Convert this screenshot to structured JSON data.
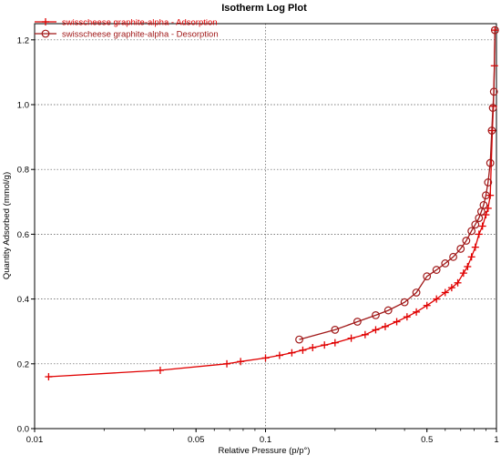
{
  "chart_data": {
    "type": "line",
    "title": "Isotherm Log Plot",
    "xlabel": "Relative Pressure (p/p°)",
    "ylabel": "Quantity Adsorbed (mmol/g)",
    "x_scale": "log",
    "xlim": [
      0.01,
      1.0
    ],
    "ylim": [
      0.0,
      1.25
    ],
    "x_ticks": [
      0.01,
      0.05,
      0.1,
      0.5,
      1
    ],
    "x_tick_labels": [
      "0.01",
      "0.05",
      "0.1",
      "0.5",
      "1"
    ],
    "x_grid": [
      0.01,
      0.1,
      1
    ],
    "y_ticks": [
      0.0,
      0.2,
      0.4,
      0.6,
      0.8,
      1.0,
      1.2
    ],
    "y_tick_labels": [
      "0.0",
      "0.2",
      "0.4",
      "0.6",
      "0.8",
      "1.0",
      "1.2"
    ],
    "grid": true,
    "legend_position": "top-left",
    "series": [
      {
        "name": "swisscheese graphite-alpha - Adsorption",
        "marker": "plus",
        "color": "#e00000",
        "x": [
          0.0115,
          0.035,
          0.068,
          0.078,
          0.1,
          0.115,
          0.13,
          0.145,
          0.16,
          0.18,
          0.2,
          0.235,
          0.27,
          0.3,
          0.33,
          0.37,
          0.41,
          0.45,
          0.5,
          0.55,
          0.6,
          0.64,
          0.68,
          0.72,
          0.75,
          0.78,
          0.81,
          0.84,
          0.87,
          0.9,
          0.92,
          0.94,
          0.96,
          0.97,
          0.98,
          0.985
        ],
        "y": [
          0.16,
          0.18,
          0.2,
          0.207,
          0.218,
          0.226,
          0.234,
          0.242,
          0.25,
          0.258,
          0.265,
          0.279,
          0.29,
          0.305,
          0.315,
          0.33,
          0.345,
          0.36,
          0.38,
          0.4,
          0.42,
          0.435,
          0.45,
          0.48,
          0.5,
          0.53,
          0.56,
          0.6,
          0.625,
          0.66,
          0.68,
          0.72,
          0.92,
          0.995,
          1.12,
          1.23
        ]
      },
      {
        "name": "swisscheese graphite-alpha - Desorption",
        "marker": "circle",
        "color": "#a01818",
        "x": [
          0.985,
          0.975,
          0.965,
          0.955,
          0.94,
          0.92,
          0.9,
          0.88,
          0.86,
          0.84,
          0.81,
          0.78,
          0.74,
          0.7,
          0.65,
          0.6,
          0.55,
          0.5,
          0.45,
          0.4,
          0.34,
          0.3,
          0.25,
          0.2,
          0.14
        ],
        "y": [
          1.23,
          1.04,
          0.99,
          0.92,
          0.82,
          0.76,
          0.72,
          0.69,
          0.67,
          0.65,
          0.63,
          0.61,
          0.58,
          0.555,
          0.53,
          0.51,
          0.49,
          0.47,
          0.42,
          0.39,
          0.365,
          0.35,
          0.33,
          0.305,
          0.275
        ]
      }
    ]
  }
}
